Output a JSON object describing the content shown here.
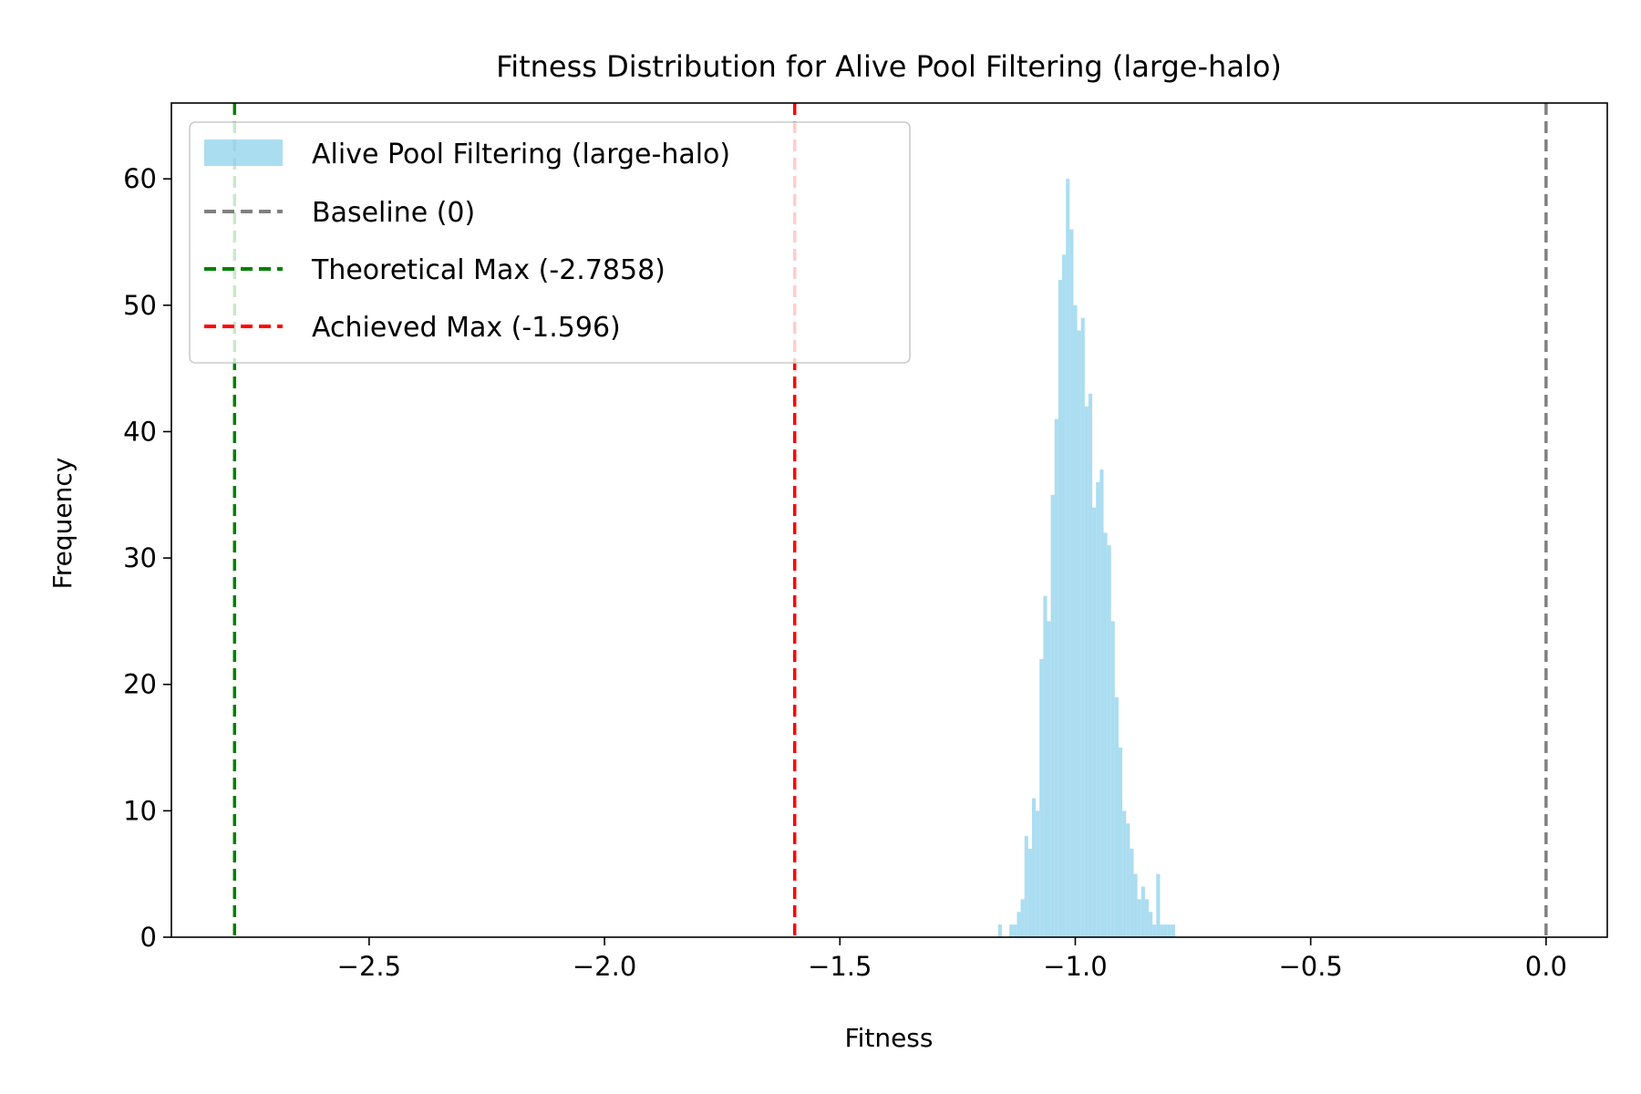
{
  "chart_data": {
    "type": "bar",
    "title": "Fitness Distribution for Alive Pool Filtering (large-halo)",
    "xlabel": "Fitness",
    "ylabel": "Frequency",
    "xlim": [
      -2.92,
      0.13
    ],
    "ylim": [
      0,
      66
    ],
    "xticks": [
      -2.5,
      -2.0,
      -1.5,
      -1.0,
      -0.5,
      0.0
    ],
    "xtick_labels": [
      "−2.5",
      "−2.0",
      "−1.5",
      "−1.0",
      "−0.5",
      "0.0"
    ],
    "yticks": [
      0,
      10,
      20,
      30,
      40,
      50,
      60
    ],
    "ytick_labels": [
      "0",
      "10",
      "20",
      "30",
      "40",
      "50",
      "60"
    ],
    "grid": false,
    "legend_position": "top-left",
    "hist_color": "#87ceeb",
    "histogram": {
      "name": "Alive Pool Filtering (large-halo)",
      "bin_edges": [
        -1.164,
        -1.156,
        -1.148,
        -1.14,
        -1.132,
        -1.124,
        -1.116,
        -1.108,
        -1.1,
        -1.092,
        -1.084,
        -1.076,
        -1.068,
        -1.06,
        -1.052,
        -1.044,
        -1.036,
        -1.028,
        -1.02,
        -1.012,
        -1.004,
        -0.996,
        -0.988,
        -0.98,
        -0.972,
        -0.964,
        -0.956,
        -0.948,
        -0.94,
        -0.932,
        -0.924,
        -0.916,
        -0.908,
        -0.9,
        -0.892,
        -0.884,
        -0.876,
        -0.868,
        -0.86,
        -0.852,
        -0.844,
        -0.836,
        -0.828,
        -0.82,
        -0.812,
        -0.804,
        -0.796,
        -0.788
      ],
      "counts": [
        1,
        0,
        0,
        1,
        1,
        2,
        3,
        8,
        7,
        11,
        10,
        22,
        27,
        25,
        35,
        41,
        52,
        54,
        60,
        56,
        50,
        48,
        49,
        42,
        43,
        34,
        36,
        37,
        32,
        31,
        25,
        19,
        15,
        10,
        9,
        7,
        5,
        3,
        4,
        3,
        2,
        1,
        5,
        1,
        1,
        1,
        1
      ]
    },
    "vlines": [
      {
        "name": "Baseline (0)",
        "x": 0.0,
        "color": "#808080"
      },
      {
        "name": "Theoretical Max (-2.7858)",
        "x": -2.7858,
        "color": "#008000"
      },
      {
        "name": "Achieved Max (-1.596)",
        "x": -1.596,
        "color": "#ff0000"
      }
    ]
  }
}
